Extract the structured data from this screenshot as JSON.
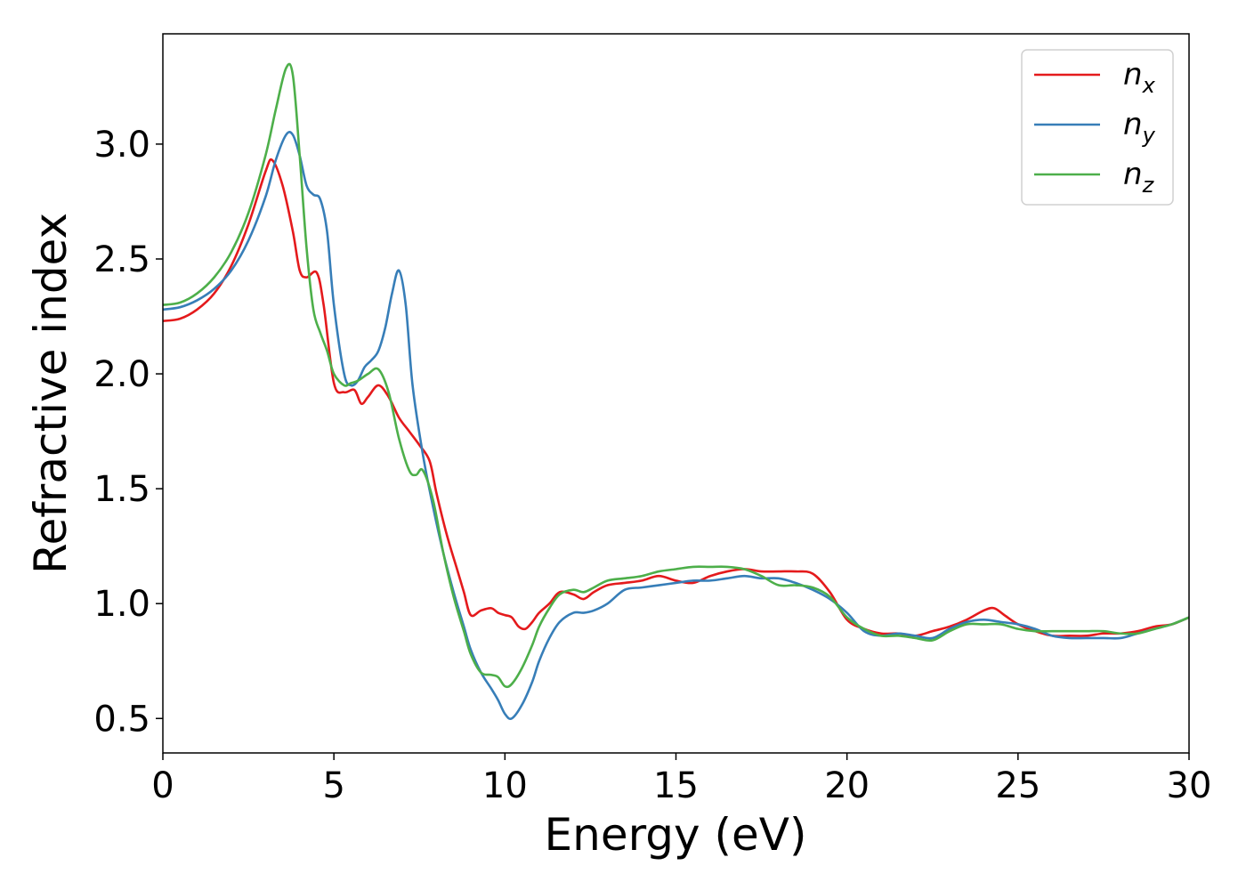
{
  "chart_data": {
    "type": "line",
    "title": "",
    "xlabel": "Energy (eV)",
    "ylabel": "Refractive index",
    "xlim": [
      0,
      30
    ],
    "ylim": [
      0.35,
      3.48
    ],
    "xticks": [
      0,
      5,
      10,
      15,
      20,
      25,
      30
    ],
    "xtick_labels": [
      "0",
      "5",
      "10",
      "15",
      "20",
      "25",
      "30"
    ],
    "yticks": [
      0.5,
      1.0,
      1.5,
      2.0,
      2.5,
      3.0
    ],
    "ytick_labels": [
      "0.5",
      "1.0",
      "1.5",
      "2.0",
      "2.5",
      "3.0"
    ],
    "grid": false,
    "legend_position": "top-right",
    "series": [
      {
        "name": "n_x",
        "label_main": "n",
        "label_sub": "x",
        "color": "#e41a1c",
        "x": [
          0,
          0.5,
          1.0,
          1.5,
          2.0,
          2.5,
          3.0,
          3.2,
          3.5,
          3.8,
          4.0,
          4.2,
          4.5,
          4.7,
          5.0,
          5.3,
          5.6,
          5.8,
          6.0,
          6.3,
          6.6,
          6.9,
          7.2,
          7.5,
          7.8,
          8.0,
          8.3,
          8.6,
          8.8,
          9.0,
          9.3,
          9.6,
          9.8,
          10.0,
          10.2,
          10.4,
          10.6,
          10.8,
          11.0,
          11.3,
          11.6,
          12.0,
          12.3,
          12.6,
          13.0,
          13.5,
          14.0,
          14.5,
          15.0,
          15.5,
          16.0,
          16.5,
          17.0,
          17.5,
          18.0,
          18.5,
          19.0,
          19.5,
          20.0,
          20.5,
          21.0,
          21.5,
          22.0,
          22.5,
          23.0,
          23.5,
          24.0,
          24.3,
          24.6,
          25.0,
          25.5,
          26.0,
          26.5,
          27.0,
          27.5,
          28.0,
          28.5,
          29.0,
          29.5,
          30.0
        ],
        "y": [
          2.23,
          2.24,
          2.28,
          2.35,
          2.47,
          2.65,
          2.88,
          2.93,
          2.82,
          2.62,
          2.45,
          2.42,
          2.44,
          2.3,
          1.96,
          1.92,
          1.93,
          1.87,
          1.9,
          1.95,
          1.9,
          1.81,
          1.75,
          1.69,
          1.62,
          1.48,
          1.3,
          1.15,
          1.05,
          0.95,
          0.97,
          0.98,
          0.96,
          0.95,
          0.94,
          0.9,
          0.89,
          0.92,
          0.96,
          1.0,
          1.05,
          1.04,
          1.02,
          1.05,
          1.08,
          1.09,
          1.1,
          1.12,
          1.1,
          1.09,
          1.12,
          1.14,
          1.15,
          1.14,
          1.14,
          1.14,
          1.13,
          1.05,
          0.93,
          0.89,
          0.87,
          0.87,
          0.86,
          0.88,
          0.9,
          0.93,
          0.97,
          0.98,
          0.95,
          0.91,
          0.88,
          0.86,
          0.86,
          0.86,
          0.87,
          0.87,
          0.88,
          0.9,
          0.91,
          0.94
        ]
      },
      {
        "name": "n_y",
        "label_main": "n",
        "label_sub": "y",
        "color": "#377eb8",
        "x": [
          0,
          0.5,
          1.0,
          1.5,
          2.0,
          2.5,
          3.0,
          3.3,
          3.6,
          3.8,
          4.0,
          4.2,
          4.4,
          4.6,
          4.8,
          5.0,
          5.3,
          5.5,
          5.7,
          5.9,
          6.1,
          6.3,
          6.5,
          6.7,
          6.9,
          7.1,
          7.3,
          7.6,
          7.9,
          8.2,
          8.5,
          8.8,
          9.0,
          9.3,
          9.6,
          9.8,
          10.0,
          10.2,
          10.5,
          10.8,
          11.0,
          11.3,
          11.6,
          12.0,
          12.3,
          12.6,
          13.0,
          13.5,
          14.0,
          14.5,
          15.0,
          15.5,
          16.0,
          16.5,
          17.0,
          17.5,
          18.0,
          18.5,
          19.0,
          19.5,
          20.0,
          20.5,
          21.0,
          21.5,
          22.0,
          22.5,
          23.0,
          23.5,
          24.0,
          24.5,
          25.0,
          25.5,
          26.0,
          26.5,
          27.0,
          27.5,
          28.0,
          28.5,
          29.0,
          29.5,
          30.0
        ],
        "y": [
          2.28,
          2.29,
          2.32,
          2.37,
          2.45,
          2.58,
          2.77,
          2.93,
          3.04,
          3.04,
          2.95,
          2.82,
          2.78,
          2.76,
          2.62,
          2.3,
          2.0,
          1.95,
          1.97,
          2.03,
          2.06,
          2.1,
          2.2,
          2.35,
          2.45,
          2.3,
          1.95,
          1.65,
          1.42,
          1.22,
          1.05,
          0.9,
          0.8,
          0.7,
          0.63,
          0.58,
          0.52,
          0.5,
          0.56,
          0.66,
          0.75,
          0.85,
          0.92,
          0.96,
          0.96,
          0.97,
          1.0,
          1.06,
          1.07,
          1.08,
          1.09,
          1.1,
          1.1,
          1.11,
          1.12,
          1.11,
          1.11,
          1.09,
          1.06,
          1.02,
          0.96,
          0.88,
          0.86,
          0.87,
          0.86,
          0.85,
          0.89,
          0.92,
          0.93,
          0.92,
          0.91,
          0.89,
          0.86,
          0.85,
          0.85,
          0.85,
          0.85,
          0.87,
          0.89,
          0.91,
          0.94
        ]
      },
      {
        "name": "n_z",
        "label_main": "n",
        "label_sub": "z",
        "color": "#4daf4a",
        "x": [
          0,
          0.5,
          1.0,
          1.5,
          2.0,
          2.5,
          3.0,
          3.3,
          3.6,
          3.8,
          4.0,
          4.2,
          4.4,
          4.6,
          4.8,
          5.0,
          5.3,
          5.5,
          5.7,
          6.0,
          6.3,
          6.6,
          6.9,
          7.2,
          7.4,
          7.6,
          7.9,
          8.2,
          8.5,
          8.8,
          9.0,
          9.3,
          9.6,
          9.8,
          10.0,
          10.2,
          10.5,
          10.8,
          11.0,
          11.3,
          11.6,
          12.0,
          12.3,
          12.6,
          13.0,
          13.5,
          14.0,
          14.5,
          15.0,
          15.5,
          16.0,
          16.5,
          17.0,
          17.5,
          18.0,
          18.5,
          19.0,
          19.5,
          20.0,
          20.5,
          21.0,
          21.5,
          22.0,
          22.5,
          23.0,
          23.5,
          24.0,
          24.5,
          25.0,
          25.5,
          26.0,
          26.5,
          27.0,
          27.5,
          28.0,
          28.5,
          29.0,
          29.5,
          30.0
        ],
        "y": [
          2.3,
          2.31,
          2.35,
          2.42,
          2.53,
          2.7,
          2.95,
          3.15,
          3.33,
          3.3,
          2.95,
          2.55,
          2.28,
          2.18,
          2.1,
          2.0,
          1.95,
          1.96,
          1.97,
          2.0,
          2.02,
          1.92,
          1.72,
          1.58,
          1.56,
          1.58,
          1.45,
          1.22,
          1.03,
          0.88,
          0.78,
          0.7,
          0.69,
          0.68,
          0.64,
          0.65,
          0.72,
          0.82,
          0.9,
          0.98,
          1.04,
          1.06,
          1.05,
          1.07,
          1.1,
          1.11,
          1.12,
          1.14,
          1.15,
          1.16,
          1.16,
          1.16,
          1.15,
          1.12,
          1.08,
          1.08,
          1.07,
          1.03,
          0.94,
          0.89,
          0.86,
          0.86,
          0.85,
          0.84,
          0.88,
          0.91,
          0.91,
          0.91,
          0.89,
          0.88,
          0.88,
          0.88,
          0.88,
          0.88,
          0.87,
          0.87,
          0.89,
          0.91,
          0.94
        ]
      }
    ]
  }
}
